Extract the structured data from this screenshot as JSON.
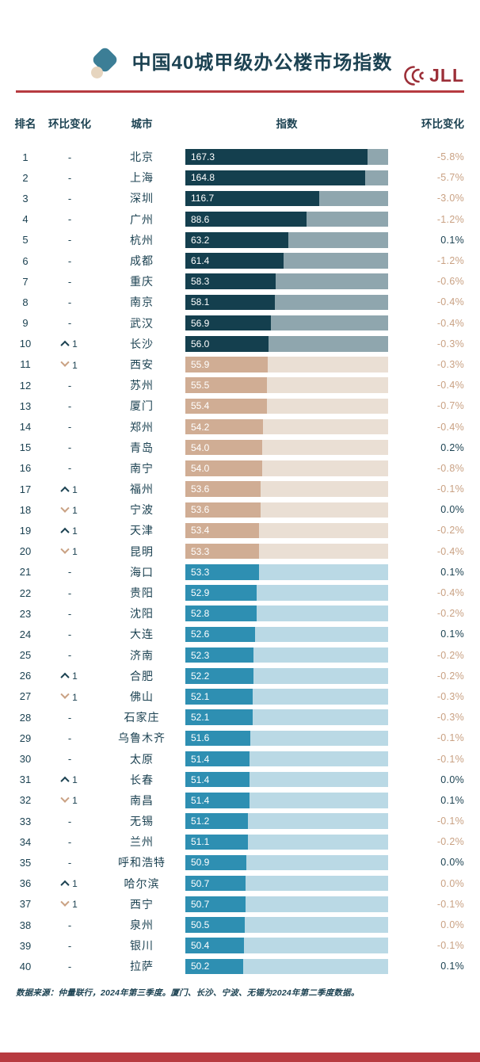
{
  "brand": {
    "logo_text": "JLL"
  },
  "header": {
    "title": "中国40城甲级办公楼市场指数"
  },
  "columns": {
    "rank": "排名",
    "move": "环比变化",
    "city": "城市",
    "index": "指数",
    "qoq": "环比变化"
  },
  "footer": {
    "source": "数据来源：仲量联行，2024年第三季度。厦门、长沙、宁波、无锡为2024年第二季度数据。"
  },
  "colors": {
    "navy": "#1c4252",
    "tan_text": "#c9a183",
    "accent_red": "#b73b40",
    "logo_red": "#9c2f38",
    "icon_teal": "#3c7e96",
    "icon_cream": "#e6d5bf"
  },
  "chart_data": {
    "type": "bar",
    "title": "中国40城甲级办公楼市场指数",
    "xlabel": "指数",
    "value_range_shown": [
      50.2,
      167.3
    ],
    "legend": "none",
    "groups": {
      "dark": {
        "bar": "#143f4e",
        "track": "#8fa6ae",
        "ranks": "1-10"
      },
      "tan": {
        "bar": "#d0ad94",
        "track": "#eadfd4",
        "ranks": "11-20"
      },
      "blue": {
        "bar": "#2e8fb2",
        "track": "#bad9e5",
        "ranks": "21-40"
      }
    },
    "rows": [
      {
        "rank": 1,
        "move": "same",
        "move_n": 0,
        "city": "北京",
        "index": 167.3,
        "qoq": "-5.8%",
        "qoq_tone": "neg",
        "group": "dark"
      },
      {
        "rank": 2,
        "move": "same",
        "move_n": 0,
        "city": "上海",
        "index": 164.8,
        "qoq": "-5.7%",
        "qoq_tone": "neg",
        "group": "dark"
      },
      {
        "rank": 3,
        "move": "same",
        "move_n": 0,
        "city": "深圳",
        "index": 116.7,
        "qoq": "-3.0%",
        "qoq_tone": "neg",
        "group": "dark"
      },
      {
        "rank": 4,
        "move": "same",
        "move_n": 0,
        "city": "广州",
        "index": 88.6,
        "qoq": "-1.2%",
        "qoq_tone": "neg",
        "group": "dark"
      },
      {
        "rank": 5,
        "move": "same",
        "move_n": 0,
        "city": "杭州",
        "index": 63.2,
        "qoq": "0.1%",
        "qoq_tone": "pos",
        "group": "dark"
      },
      {
        "rank": 6,
        "move": "same",
        "move_n": 0,
        "city": "成都",
        "index": 61.4,
        "qoq": "-1.2%",
        "qoq_tone": "neg",
        "group": "dark"
      },
      {
        "rank": 7,
        "move": "same",
        "move_n": 0,
        "city": "重庆",
        "index": 58.3,
        "qoq": "-0.6%",
        "qoq_tone": "neg",
        "group": "dark"
      },
      {
        "rank": 8,
        "move": "same",
        "move_n": 0,
        "city": "南京",
        "index": 58.1,
        "qoq": "-0.4%",
        "qoq_tone": "neg",
        "group": "dark"
      },
      {
        "rank": 9,
        "move": "same",
        "move_n": 0,
        "city": "武汉",
        "index": 56.9,
        "qoq": "-0.4%",
        "qoq_tone": "neg",
        "group": "dark"
      },
      {
        "rank": 10,
        "move": "up1",
        "move_n": 1,
        "city": "长沙",
        "index": 56.0,
        "qoq": "-0.3%",
        "qoq_tone": "neg",
        "group": "dark"
      },
      {
        "rank": 11,
        "move": "down1",
        "move_n": 1,
        "city": "西安",
        "index": 55.9,
        "qoq": "-0.3%",
        "qoq_tone": "neg",
        "group": "tan"
      },
      {
        "rank": 12,
        "move": "same",
        "move_n": 0,
        "city": "苏州",
        "index": 55.5,
        "qoq": "-0.4%",
        "qoq_tone": "neg",
        "group": "tan"
      },
      {
        "rank": 13,
        "move": "same",
        "move_n": 0,
        "city": "厦门",
        "index": 55.4,
        "qoq": "-0.7%",
        "qoq_tone": "neg",
        "group": "tan"
      },
      {
        "rank": 14,
        "move": "same",
        "move_n": 0,
        "city": "郑州",
        "index": 54.2,
        "qoq": "-0.4%",
        "qoq_tone": "neg",
        "group": "tan"
      },
      {
        "rank": 15,
        "move": "same",
        "move_n": 0,
        "city": "青岛",
        "index": 54.0,
        "qoq": "0.2%",
        "qoq_tone": "pos",
        "group": "tan"
      },
      {
        "rank": 16,
        "move": "same",
        "move_n": 0,
        "city": "南宁",
        "index": 54.0,
        "qoq": "-0.8%",
        "qoq_tone": "neg",
        "group": "tan"
      },
      {
        "rank": 17,
        "move": "up1",
        "move_n": 1,
        "city": "福州",
        "index": 53.6,
        "qoq": "-0.1%",
        "qoq_tone": "neg",
        "group": "tan"
      },
      {
        "rank": 18,
        "move": "down1",
        "move_n": 1,
        "city": "宁波",
        "index": 53.6,
        "qoq": "0.0%",
        "qoq_tone": "pos",
        "group": "tan"
      },
      {
        "rank": 19,
        "move": "up1",
        "move_n": 1,
        "city": "天津",
        "index": 53.4,
        "qoq": "-0.2%",
        "qoq_tone": "neg",
        "group": "tan"
      },
      {
        "rank": 20,
        "move": "down1",
        "move_n": 1,
        "city": "昆明",
        "index": 53.3,
        "qoq": "-0.4%",
        "qoq_tone": "neg",
        "group": "tan"
      },
      {
        "rank": 21,
        "move": "same",
        "move_n": 0,
        "city": "海口",
        "index": 53.3,
        "qoq": "0.1%",
        "qoq_tone": "pos",
        "group": "blue"
      },
      {
        "rank": 22,
        "move": "same",
        "move_n": 0,
        "city": "贵阳",
        "index": 52.9,
        "qoq": "-0.4%",
        "qoq_tone": "neg",
        "group": "blue"
      },
      {
        "rank": 23,
        "move": "same",
        "move_n": 0,
        "city": "沈阳",
        "index": 52.8,
        "qoq": "-0.2%",
        "qoq_tone": "neg",
        "group": "blue"
      },
      {
        "rank": 24,
        "move": "same",
        "move_n": 0,
        "city": "大连",
        "index": 52.6,
        "qoq": "0.1%",
        "qoq_tone": "pos",
        "group": "blue"
      },
      {
        "rank": 25,
        "move": "same",
        "move_n": 0,
        "city": "济南",
        "index": 52.3,
        "qoq": "-0.2%",
        "qoq_tone": "neg",
        "group": "blue"
      },
      {
        "rank": 26,
        "move": "up1",
        "move_n": 1,
        "city": "合肥",
        "index": 52.2,
        "qoq": "-0.2%",
        "qoq_tone": "neg",
        "group": "blue"
      },
      {
        "rank": 27,
        "move": "down1",
        "move_n": 1,
        "city": "佛山",
        "index": 52.1,
        "qoq": "-0.3%",
        "qoq_tone": "neg",
        "group": "blue"
      },
      {
        "rank": 28,
        "move": "same",
        "move_n": 0,
        "city": "石家庄",
        "index": 52.1,
        "qoq": "-0.3%",
        "qoq_tone": "neg",
        "group": "blue"
      },
      {
        "rank": 29,
        "move": "same",
        "move_n": 0,
        "city": "乌鲁木齐",
        "index": 51.6,
        "qoq": "-0.1%",
        "qoq_tone": "neg",
        "group": "blue"
      },
      {
        "rank": 30,
        "move": "same",
        "move_n": 0,
        "city": "太原",
        "index": 51.4,
        "qoq": "-0.1%",
        "qoq_tone": "neg",
        "group": "blue"
      },
      {
        "rank": 31,
        "move": "up1",
        "move_n": 1,
        "city": "长春",
        "index": 51.4,
        "qoq": "0.0%",
        "qoq_tone": "pos",
        "group": "blue"
      },
      {
        "rank": 32,
        "move": "down1",
        "move_n": 1,
        "city": "南昌",
        "index": 51.4,
        "qoq": "0.1%",
        "qoq_tone": "pos",
        "group": "blue"
      },
      {
        "rank": 33,
        "move": "same",
        "move_n": 0,
        "city": "无锡",
        "index": 51.2,
        "qoq": "-0.1%",
        "qoq_tone": "neg",
        "group": "blue"
      },
      {
        "rank": 34,
        "move": "same",
        "move_n": 0,
        "city": "兰州",
        "index": 51.1,
        "qoq": "-0.2%",
        "qoq_tone": "neg",
        "group": "blue"
      },
      {
        "rank": 35,
        "move": "same",
        "move_n": 0,
        "city": "呼和浩特",
        "index": 50.9,
        "qoq": "0.0%",
        "qoq_tone": "pos",
        "group": "blue"
      },
      {
        "rank": 36,
        "move": "up1",
        "move_n": 1,
        "city": "哈尔滨",
        "index": 50.7,
        "qoq": "0.0%",
        "qoq_tone": "neg",
        "group": "blue"
      },
      {
        "rank": 37,
        "move": "down1",
        "move_n": 1,
        "city": "西宁",
        "index": 50.7,
        "qoq": "-0.1%",
        "qoq_tone": "neg",
        "group": "blue"
      },
      {
        "rank": 38,
        "move": "same",
        "move_n": 0,
        "city": "泉州",
        "index": 50.5,
        "qoq": "0.0%",
        "qoq_tone": "neg",
        "group": "blue"
      },
      {
        "rank": 39,
        "move": "same",
        "move_n": 0,
        "city": "银川",
        "index": 50.4,
        "qoq": "-0.1%",
        "qoq_tone": "neg",
        "group": "blue"
      },
      {
        "rank": 40,
        "move": "same",
        "move_n": 0,
        "city": "拉萨",
        "index": 50.2,
        "qoq": "0.1%",
        "qoq_tone": "pos",
        "group": "blue"
      }
    ]
  }
}
